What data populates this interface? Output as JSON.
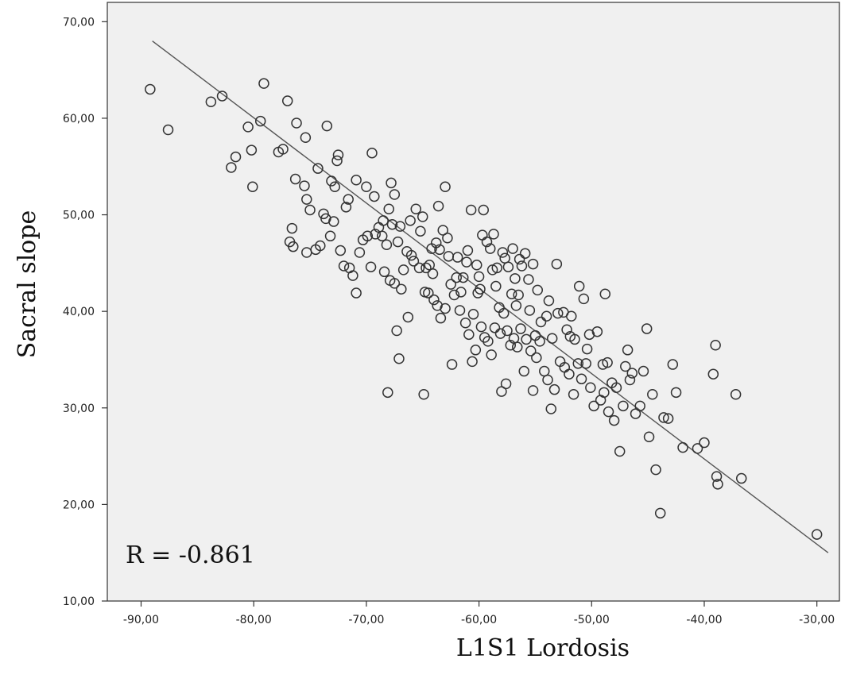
{
  "chart_data": {
    "type": "scatter",
    "xlabel": "L1S1 Lordosis",
    "ylabel": "Sacral slope",
    "xlim": [
      -93,
      -28
    ],
    "ylim": [
      10,
      72
    ],
    "xticks": [
      -90,
      -80,
      -70,
      -60,
      -50,
      -40,
      -30
    ],
    "yticks": [
      10,
      20,
      30,
      40,
      50,
      60,
      70
    ],
    "xtick_labels": [
      "-90,00",
      "-80,00",
      "-70,00",
      "-60,00",
      "-50,00",
      "-40,00",
      "-30,00"
    ],
    "ytick_labels": [
      "10,00",
      "20,00",
      "30,00",
      "40,00",
      "50,00",
      "60,00",
      "70,00"
    ],
    "annotation": "R = -0.861",
    "fit_line": {
      "x": [
        -89,
        -29
      ],
      "y": [
        68,
        15
      ]
    },
    "grid": false,
    "colors": {
      "plot_bg": "#f0f0f0",
      "marker": "#333333",
      "line": "#555555"
    },
    "series": [
      {
        "points": [
          [
            -89.2,
            63.0
          ],
          [
            -87.6,
            58.8
          ],
          [
            -83.8,
            61.7
          ],
          [
            -82.8,
            62.3
          ],
          [
            -79.1,
            63.6
          ],
          [
            -77.0,
            61.8
          ],
          [
            -81.6,
            56.0
          ],
          [
            -82.0,
            54.9
          ],
          [
            -80.5,
            59.1
          ],
          [
            -79.4,
            59.7
          ],
          [
            -80.2,
            56.7
          ],
          [
            -80.1,
            52.9
          ],
          [
            -76.2,
            59.5
          ],
          [
            -75.4,
            58.0
          ],
          [
            -73.5,
            59.2
          ],
          [
            -77.8,
            56.5
          ],
          [
            -77.4,
            56.8
          ],
          [
            -76.3,
            53.7
          ],
          [
            -75.5,
            53.0
          ],
          [
            -75.3,
            51.6
          ],
          [
            -75.0,
            50.5
          ],
          [
            -74.3,
            54.8
          ],
          [
            -73.1,
            53.5
          ],
          [
            -72.8,
            52.9
          ],
          [
            -72.6,
            55.6
          ],
          [
            -72.5,
            56.2
          ],
          [
            -71.6,
            51.6
          ],
          [
            -70.9,
            53.6
          ],
          [
            -70.0,
            52.9
          ],
          [
            -69.5,
            56.4
          ],
          [
            -76.6,
            48.6
          ],
          [
            -76.8,
            47.2
          ],
          [
            -76.5,
            46.7
          ],
          [
            -75.3,
            46.1
          ],
          [
            -74.5,
            46.4
          ],
          [
            -74.1,
            46.8
          ],
          [
            -73.6,
            49.6
          ],
          [
            -73.2,
            47.8
          ],
          [
            -72.9,
            49.3
          ],
          [
            -72.3,
            46.3
          ],
          [
            -72.0,
            44.7
          ],
          [
            -71.5,
            44.5
          ],
          [
            -71.2,
            43.7
          ],
          [
            -70.9,
            41.9
          ],
          [
            -70.6,
            46.1
          ],
          [
            -70.3,
            47.4
          ],
          [
            -69.6,
            44.6
          ],
          [
            -69.2,
            48.0
          ],
          [
            -68.9,
            48.7
          ],
          [
            -68.5,
            49.4
          ],
          [
            -68.6,
            47.8
          ],
          [
            -68.2,
            46.9
          ],
          [
            -68.0,
            50.6
          ],
          [
            -67.8,
            53.3
          ],
          [
            -67.5,
            52.1
          ],
          [
            -67.7,
            49.0
          ],
          [
            -67.2,
            47.2
          ],
          [
            -68.4,
            44.1
          ],
          [
            -67.9,
            43.2
          ],
          [
            -67.5,
            42.9
          ],
          [
            -66.9,
            42.3
          ],
          [
            -66.4,
            46.2
          ],
          [
            -66.0,
            45.8
          ],
          [
            -65.6,
            50.6
          ],
          [
            -65.2,
            48.3
          ],
          [
            -65.0,
            49.8
          ],
          [
            -64.7,
            44.5
          ],
          [
            -64.4,
            44.8
          ],
          [
            -64.1,
            43.9
          ],
          [
            -63.8,
            47.1
          ],
          [
            -63.5,
            46.4
          ],
          [
            -63.2,
            48.4
          ],
          [
            -63.0,
            52.9
          ],
          [
            -63.6,
            50.9
          ],
          [
            -62.8,
            47.6
          ],
          [
            -62.5,
            42.8
          ],
          [
            -62.2,
            41.7
          ],
          [
            -64.0,
            41.2
          ],
          [
            -64.5,
            41.9
          ],
          [
            -63.7,
            40.6
          ],
          [
            -63.4,
            39.3
          ],
          [
            -63.0,
            40.3
          ],
          [
            -61.9,
            45.6
          ],
          [
            -61.4,
            43.5
          ],
          [
            -61.0,
            46.3
          ],
          [
            -60.7,
            50.5
          ],
          [
            -60.2,
            44.8
          ],
          [
            -60.0,
            43.6
          ],
          [
            -59.7,
            47.9
          ],
          [
            -59.6,
            50.5
          ],
          [
            -59.3,
            47.2
          ],
          [
            -59.0,
            46.5
          ],
          [
            -58.8,
            44.3
          ],
          [
            -58.5,
            42.6
          ],
          [
            -58.2,
            40.4
          ],
          [
            -57.7,
            45.5
          ],
          [
            -57.4,
            44.6
          ],
          [
            -57.0,
            46.5
          ],
          [
            -56.8,
            43.4
          ],
          [
            -56.5,
            41.7
          ],
          [
            -56.2,
            44.7
          ],
          [
            -55.9,
            46.0
          ],
          [
            -55.6,
            43.3
          ],
          [
            -55.2,
            44.9
          ],
          [
            -54.8,
            42.2
          ],
          [
            -54.5,
            38.9
          ],
          [
            -53.8,
            41.1
          ],
          [
            -53.5,
            37.2
          ],
          [
            -53.1,
            44.9
          ],
          [
            -52.5,
            39.9
          ],
          [
            -51.8,
            39.5
          ],
          [
            -51.5,
            37.1
          ],
          [
            -51.1,
            42.6
          ],
          [
            -50.7,
            41.3
          ],
          [
            -50.2,
            37.6
          ],
          [
            -49.5,
            37.9
          ],
          [
            -48.8,
            41.8
          ],
          [
            -48.6,
            34.7
          ],
          [
            -48.2,
            32.6
          ],
          [
            -61.7,
            40.1
          ],
          [
            -61.2,
            38.8
          ],
          [
            -60.9,
            37.6
          ],
          [
            -60.5,
            39.7
          ],
          [
            -60.1,
            41.9
          ],
          [
            -59.8,
            38.4
          ],
          [
            -59.5,
            37.3
          ],
          [
            -59.2,
            36.9
          ],
          [
            -58.9,
            35.5
          ],
          [
            -58.6,
            38.3
          ],
          [
            -58.1,
            37.7
          ],
          [
            -57.8,
            39.8
          ],
          [
            -57.5,
            38.0
          ],
          [
            -57.2,
            36.5
          ],
          [
            -56.9,
            37.2
          ],
          [
            -56.6,
            36.3
          ],
          [
            -56.3,
            38.2
          ],
          [
            -55.8,
            37.1
          ],
          [
            -55.4,
            35.9
          ],
          [
            -55.0,
            37.5
          ],
          [
            -54.6,
            36.9
          ],
          [
            -54.2,
            33.8
          ],
          [
            -53.9,
            32.9
          ],
          [
            -53.3,
            31.9
          ],
          [
            -52.8,
            34.8
          ],
          [
            -52.4,
            34.2
          ],
          [
            -52.0,
            33.5
          ],
          [
            -51.6,
            31.4
          ],
          [
            -51.2,
            34.6
          ],
          [
            -50.9,
            33.0
          ],
          [
            -50.5,
            34.6
          ],
          [
            -50.1,
            32.1
          ],
          [
            -49.8,
            30.2
          ],
          [
            -49.2,
            30.8
          ],
          [
            -48.9,
            31.6
          ],
          [
            -48.5,
            29.6
          ],
          [
            -48.0,
            28.7
          ],
          [
            -47.8,
            32.1
          ],
          [
            -47.5,
            25.5
          ],
          [
            -47.2,
            30.2
          ],
          [
            -46.8,
            36.0
          ],
          [
            -46.4,
            33.6
          ],
          [
            -46.1,
            29.4
          ],
          [
            -45.7,
            30.2
          ],
          [
            -45.4,
            33.8
          ],
          [
            -45.1,
            38.2
          ],
          [
            -44.9,
            27.0
          ],
          [
            -44.6,
            31.4
          ],
          [
            -44.3,
            23.6
          ],
          [
            -43.9,
            19.1
          ],
          [
            -43.6,
            29.0
          ],
          [
            -43.2,
            28.9
          ],
          [
            -42.8,
            34.5
          ],
          [
            -42.5,
            31.6
          ],
          [
            -41.9,
            25.9
          ],
          [
            -40.6,
            25.8
          ],
          [
            -40.0,
            26.4
          ],
          [
            -39.2,
            33.5
          ],
          [
            -39.0,
            36.5
          ],
          [
            -38.9,
            22.9
          ],
          [
            -38.8,
            22.1
          ],
          [
            -37.2,
            31.4
          ],
          [
            -36.7,
            22.7
          ],
          [
            -30.0,
            16.9
          ],
          [
            -67.3,
            38.0
          ],
          [
            -67.1,
            35.1
          ],
          [
            -66.3,
            39.4
          ],
          [
            -68.1,
            31.6
          ],
          [
            -64.9,
            31.4
          ],
          [
            -62.4,
            34.5
          ],
          [
            -58.0,
            31.7
          ],
          [
            -57.6,
            32.5
          ],
          [
            -55.2,
            31.8
          ],
          [
            -53.6,
            29.9
          ],
          [
            -60.6,
            34.8
          ],
          [
            -60.3,
            36.0
          ],
          [
            -56.0,
            33.8
          ],
          [
            -54.9,
            35.2
          ],
          [
            -69.9,
            47.8
          ],
          [
            -66.7,
            44.3
          ],
          [
            -65.3,
            44.5
          ],
          [
            -64.8,
            42.0
          ],
          [
            -62.0,
            43.5
          ],
          [
            -61.6,
            42.0
          ],
          [
            -59.9,
            42.3
          ],
          [
            -58.4,
            44.5
          ],
          [
            -57.1,
            41.8
          ],
          [
            -56.7,
            40.6
          ],
          [
            -55.5,
            40.1
          ],
          [
            -54.0,
            39.5
          ],
          [
            -53.0,
            39.8
          ],
          [
            -52.2,
            38.1
          ],
          [
            -51.9,
            37.4
          ],
          [
            -50.4,
            36.1
          ],
          [
            -49.0,
            34.5
          ],
          [
            -47.0,
            34.3
          ],
          [
            -46.6,
            32.9
          ],
          [
            -73.8,
            50.1
          ],
          [
            -71.8,
            50.8
          ],
          [
            -69.3,
            51.9
          ],
          [
            -67.0,
            48.8
          ],
          [
            -66.1,
            49.4
          ],
          [
            -65.8,
            45.2
          ],
          [
            -64.2,
            46.5
          ],
          [
            -62.7,
            45.7
          ],
          [
            -61.1,
            45.1
          ],
          [
            -58.7,
            48.0
          ],
          [
            -57.9,
            46.1
          ],
          [
            -56.4,
            45.4
          ]
        ]
      }
    ]
  }
}
